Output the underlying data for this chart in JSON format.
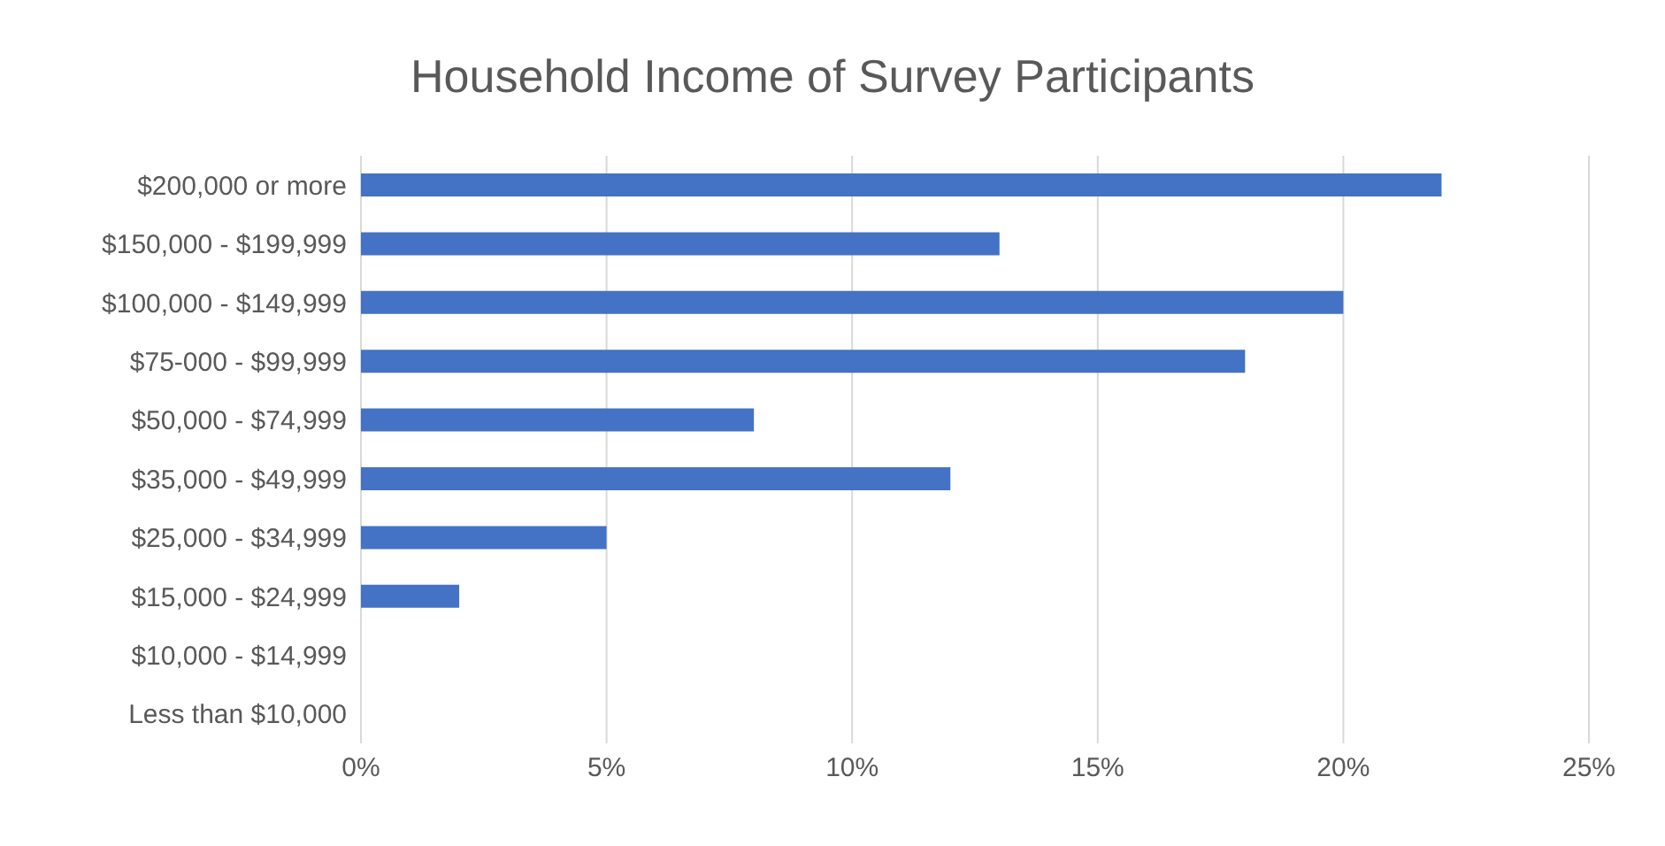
{
  "chart_data": {
    "type": "bar",
    "orientation": "horizontal",
    "title": "Household Income of Survey Participants",
    "categories": [
      "$200,000 or more",
      "$150,000 - $199,999",
      "$100,000 - $149,999",
      "$75-000 - $99,999",
      "$50,000 - $74,999",
      "$35,000 - $49,999",
      "$25,000 - $34,999",
      "$15,000 - $24,999",
      "$10,000 - $14,999",
      "Less than $10,000"
    ],
    "values": [
      22,
      13,
      20,
      18,
      8,
      12,
      5,
      2,
      0,
      0
    ],
    "color": "#4472c4",
    "xlim": [
      0,
      25
    ],
    "xticks": [
      {
        "value": 0,
        "label": "0%"
      },
      {
        "value": 5,
        "label": "5%"
      },
      {
        "value": 10,
        "label": "10%"
      },
      {
        "value": 15,
        "label": "15%"
      },
      {
        "value": 20,
        "label": "20%"
      },
      {
        "value": 25,
        "label": "25%"
      }
    ],
    "grid": "x"
  }
}
